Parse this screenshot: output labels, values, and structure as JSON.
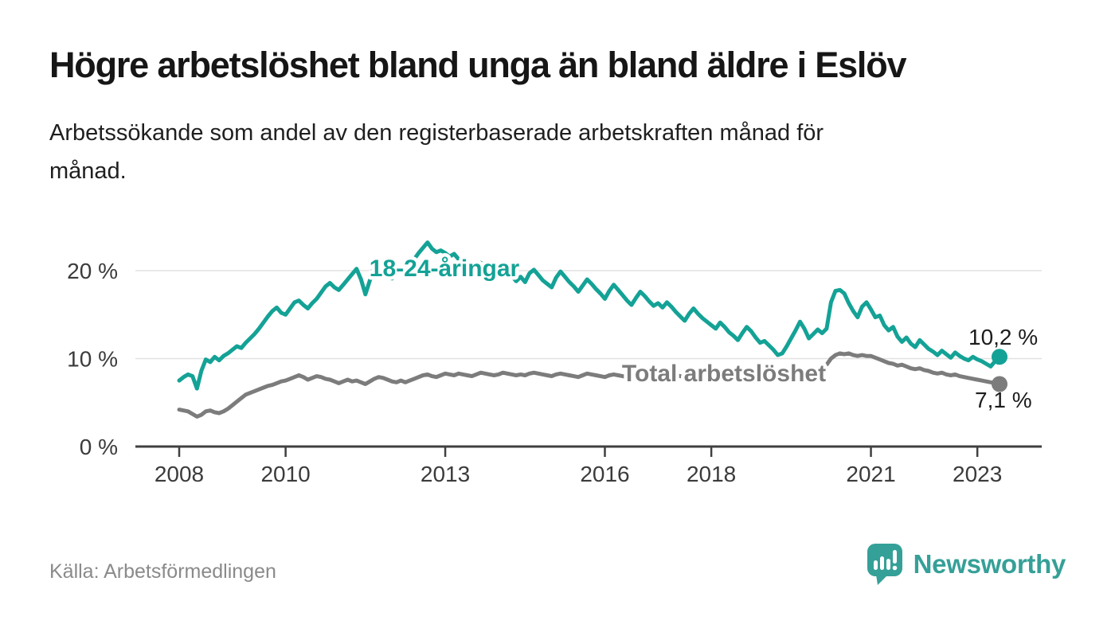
{
  "chart_data": {
    "type": "line",
    "title": "Högre arbetslöshet bland unga än bland äldre i Eslöv",
    "subtitle_lines": [
      "Arbetssökande som andel av den registerbaserade arbetskraften månad för",
      "månad."
    ],
    "x_unit": "month",
    "x_start": "2008-01",
    "x_end": "2023-06",
    "x_tick_years": [
      2008,
      2010,
      2013,
      2016,
      2018,
      2021,
      2023
    ],
    "y_ticks": [
      {
        "value": 0,
        "label": "0 %"
      },
      {
        "value": 10,
        "label": "10 %"
      },
      {
        "value": 20,
        "label": "20 %"
      }
    ],
    "ylim": [
      0,
      24
    ],
    "grid": "horizontal-only",
    "legend": "inline-labels",
    "series": [
      {
        "name": "18-24-åringar",
        "color": "#14a296",
        "end_value": 10.2,
        "end_label": "10,2 %",
        "values": [
          7.5,
          7.9,
          8.2,
          8.0,
          6.6,
          8.6,
          9.9,
          9.6,
          10.2,
          9.8,
          10.3,
          10.6,
          11.0,
          11.4,
          11.2,
          11.8,
          12.3,
          12.8,
          13.4,
          14.1,
          14.8,
          15.4,
          15.8,
          15.2,
          15.0,
          15.7,
          16.4,
          16.6,
          16.1,
          15.7,
          16.3,
          16.8,
          17.5,
          18.2,
          18.6,
          18.1,
          17.8,
          18.4,
          19.0,
          19.6,
          20.2,
          19.0,
          17.3,
          18.9,
          20.6,
          21.2,
          20.3,
          19.5,
          19.1,
          19.7,
          20.4,
          19.9,
          20.6,
          21.3,
          22.0,
          22.6,
          23.2,
          22.5,
          22.1,
          22.3,
          22.0,
          21.6,
          21.9,
          21.3,
          20.7,
          20.2,
          19.5,
          20.3,
          20.9,
          20.4,
          19.8,
          19.3,
          19.9,
          20.4,
          20.0,
          19.4,
          18.8,
          19.3,
          18.7,
          19.7,
          20.1,
          19.5,
          18.9,
          18.5,
          18.1,
          19.2,
          19.9,
          19.3,
          18.7,
          18.2,
          17.6,
          18.3,
          19.0,
          18.5,
          17.9,
          17.4,
          16.8,
          17.7,
          18.4,
          17.8,
          17.2,
          16.6,
          16.1,
          16.9,
          17.6,
          17.1,
          16.5,
          16.0,
          16.3,
          15.8,
          16.4,
          15.9,
          15.3,
          14.8,
          14.3,
          15.1,
          15.7,
          15.1,
          14.6,
          14.2,
          13.8,
          13.4,
          14.1,
          13.6,
          13.0,
          12.6,
          12.1,
          12.9,
          13.6,
          13.1,
          12.4,
          11.8,
          12.0,
          11.5,
          11.0,
          10.4,
          10.6,
          11.4,
          12.3,
          13.2,
          14.2,
          13.4,
          12.3,
          12.8,
          13.3,
          12.9,
          13.4,
          16.4,
          17.7,
          17.8,
          17.4,
          16.3,
          15.4,
          14.7,
          15.9,
          16.4,
          15.6,
          14.7,
          14.9,
          13.8,
          13.2,
          13.6,
          12.5,
          11.9,
          12.4,
          11.7,
          11.3,
          12.1,
          11.6,
          11.1,
          10.8,
          10.4,
          10.9,
          10.5,
          10.1,
          10.7,
          10.3,
          10.0,
          9.8,
          10.2,
          9.9,
          9.7,
          9.4,
          9.1,
          9.7,
          10.2
        ]
      },
      {
        "name": "Total arbetslöshet",
        "color": "#7c7c7c",
        "end_value": 7.1,
        "end_label": "7,1 %",
        "values": [
          4.2,
          4.1,
          4.0,
          3.7,
          3.4,
          3.6,
          4.0,
          4.1,
          3.9,
          3.8,
          4.0,
          4.3,
          4.7,
          5.1,
          5.5,
          5.9,
          6.1,
          6.3,
          6.5,
          6.7,
          6.9,
          7.0,
          7.2,
          7.4,
          7.5,
          7.7,
          7.9,
          8.1,
          7.9,
          7.6,
          7.8,
          8.0,
          7.9,
          7.7,
          7.6,
          7.4,
          7.2,
          7.4,
          7.6,
          7.4,
          7.5,
          7.3,
          7.1,
          7.4,
          7.7,
          7.9,
          7.8,
          7.6,
          7.4,
          7.3,
          7.5,
          7.3,
          7.5,
          7.7,
          7.9,
          8.1,
          8.2,
          8.0,
          7.9,
          8.1,
          8.3,
          8.2,
          8.1,
          8.3,
          8.2,
          8.1,
          8.0,
          8.2,
          8.4,
          8.3,
          8.2,
          8.1,
          8.2,
          8.4,
          8.3,
          8.2,
          8.1,
          8.2,
          8.1,
          8.3,
          8.4,
          8.3,
          8.2,
          8.1,
          8.0,
          8.2,
          8.3,
          8.2,
          8.1,
          8.0,
          7.9,
          8.1,
          8.3,
          8.2,
          8.1,
          8.0,
          7.9,
          8.1,
          8.2,
          8.1,
          8.0,
          7.9,
          7.8,
          8.0,
          8.2,
          8.3,
          8.2,
          8.1,
          8.0,
          8.2,
          8.3,
          8.2,
          8.1,
          8.0,
          7.9,
          8.1,
          8.3,
          8.4,
          8.3,
          8.2,
          8.1,
          8.0,
          7.9,
          8.0,
          8.1,
          8.0,
          7.9,
          8.1,
          8.2,
          8.1,
          8.0,
          7.9,
          8.0,
          8.1,
          8.2,
          8.1,
          8.0,
          7.9,
          8.0,
          8.2,
          8.4,
          8.5,
          8.4,
          8.5,
          8.7,
          8.9,
          9.3,
          10.0,
          10.4,
          10.6,
          10.5,
          10.6,
          10.4,
          10.3,
          10.4,
          10.3,
          10.3,
          10.1,
          9.9,
          9.7,
          9.5,
          9.4,
          9.2,
          9.3,
          9.1,
          8.9,
          8.8,
          8.9,
          8.7,
          8.6,
          8.4,
          8.3,
          8.4,
          8.2,
          8.1,
          8.2,
          8.0,
          7.9,
          7.8,
          7.7,
          7.6,
          7.5,
          7.4,
          7.3,
          7.2,
          7.1
        ]
      }
    ]
  },
  "footer": {
    "source": "Källa: Arbetsförmedlingen",
    "brand": "Newsworthy"
  }
}
